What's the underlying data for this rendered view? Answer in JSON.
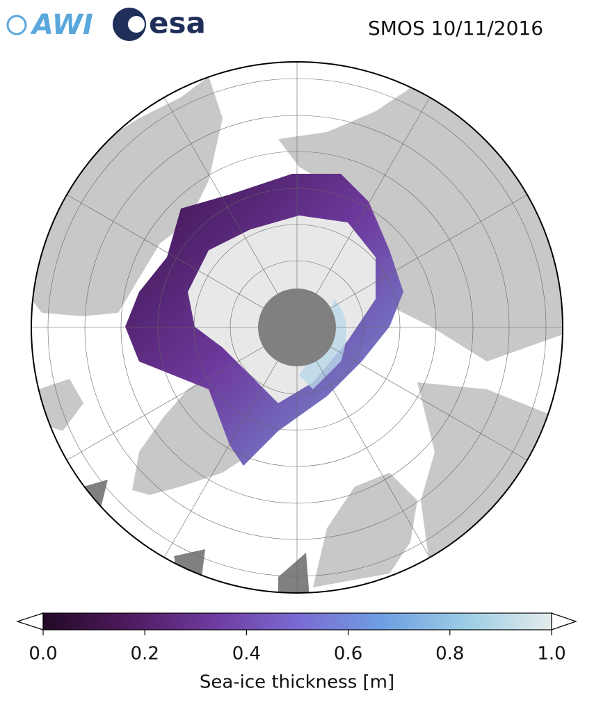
{
  "header": {
    "title": "SMOS 10/11/2016",
    "logos": [
      "AWI",
      "esa"
    ]
  },
  "colorbar": {
    "label": "Sea-ice thickness [m]",
    "lim": [
      0,
      1
    ],
    "ticks": [
      {
        "value": 0,
        "label": "0.0"
      },
      0.2,
      0.4,
      0.6,
      0.8,
      {
        "value": 1,
        "label": "1.0"
      }
    ],
    "colors": [
      "#230a26",
      "#4f1a5e",
      "#6e3a9e",
      "#7a6ad2",
      "#6f9fe2",
      "#9ccde4",
      "#e4eceb"
    ]
  }
}
